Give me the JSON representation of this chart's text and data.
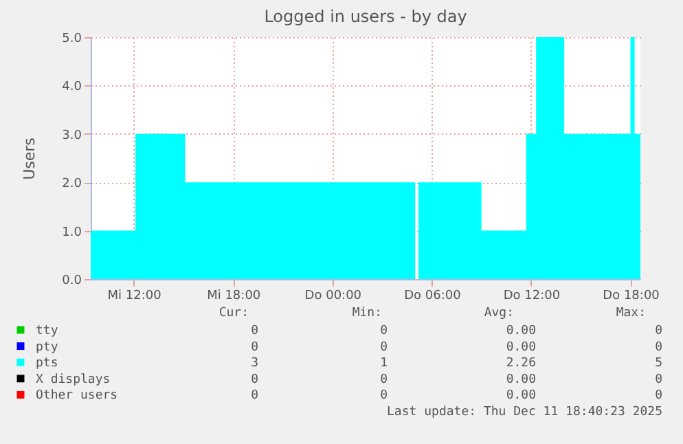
{
  "chart_data": {
    "type": "area",
    "title": "Logged in users - by day",
    "ylabel": "Users",
    "legend": "bottom",
    "grid": true,
    "xlim": [
      "2025-12-10T09:24",
      "2025-12-11T18:36"
    ],
    "xticks": [
      {
        "value": "2025-12-10T12:00",
        "label": "Mi 12:00"
      },
      {
        "value": "2025-12-10T18:00",
        "label": "Mi 18:00"
      },
      {
        "value": "2025-12-11T00:00",
        "label": "Do 00:00"
      },
      {
        "value": "2025-12-11T06:00",
        "label": "Do 06:00"
      },
      {
        "value": "2025-12-11T12:00",
        "label": "Do 12:00"
      },
      {
        "value": "2025-12-11T18:00",
        "label": "Do 18:00"
      }
    ],
    "ylim": [
      0,
      5
    ],
    "yticks": [
      {
        "value": 0,
        "label": "0.0"
      },
      {
        "value": 1,
        "label": "1.0"
      },
      {
        "value": 2,
        "label": "2.0"
      },
      {
        "value": 3,
        "label": "3.0"
      },
      {
        "value": 4,
        "label": "4.0"
      },
      {
        "value": 5,
        "label": "5.0"
      }
    ],
    "series": [
      {
        "name": "tty",
        "color": "#00cc00"
      },
      {
        "name": "pty",
        "color": "#0000ff"
      },
      {
        "name": "pts",
        "color": "#00ffff",
        "x": [
          "2025-12-10T09:24",
          "2025-12-10T12:06",
          "2025-12-10T15:06",
          "2025-12-11T05:00",
          "2025-12-11T05:06",
          "2025-12-11T05:12",
          "2025-12-11T09:00",
          "2025-12-11T11:42",
          "2025-12-11T12:18",
          "2025-12-11T14:00",
          "2025-12-11T18:00",
          "2025-12-11T18:15",
          "2025-12-11T18:36"
        ],
        "values": [
          1,
          3,
          2,
          2,
          null,
          2,
          1,
          3,
          5,
          3,
          5,
          3,
          3
        ]
      },
      {
        "name": "X displays",
        "color": "#000000"
      },
      {
        "name": "Other users",
        "color": "#ff0000"
      }
    ],
    "annotations": [
      "Cur:",
      "Min:",
      "Avg:",
      "Max:",
      "0",
      "0",
      "0.00",
      "0",
      "0",
      "0",
      "0.00",
      "0",
      "3",
      "1",
      "2.26",
      "5",
      "0",
      "0",
      "0.00",
      "0",
      "0",
      "0",
      "0.00",
      "0",
      "Last update: Thu Dec 11 18:40:23 2025"
    ]
  }
}
